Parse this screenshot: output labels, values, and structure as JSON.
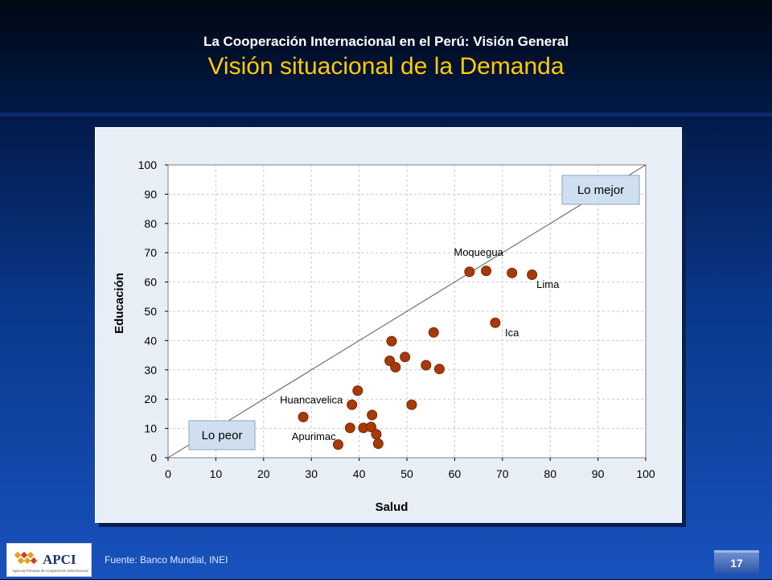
{
  "header": {
    "subtitle": "La Cooperación Internacional en el Perú: Visión General",
    "title": "Visión situacional de la Demanda"
  },
  "footer": {
    "source": "Fuente: Banco Mundial, INEI",
    "page_number": "17",
    "logo_name": "APCI",
    "logo_tagline": "Agencia Peruana de Cooperación Internacional"
  },
  "colors": {
    "title": "#ffcc00",
    "point": "#a63a0a",
    "point_stroke": "#7a2604",
    "label_box": "#cfdff0"
  },
  "chart_data": {
    "type": "scatter",
    "xlabel": "Salud",
    "ylabel": "Educación",
    "xlim": [
      0,
      100
    ],
    "ylim": [
      0,
      100
    ],
    "xticks": [
      0,
      10,
      20,
      30,
      40,
      50,
      60,
      70,
      80,
      90,
      100
    ],
    "yticks": [
      0,
      10,
      20,
      30,
      40,
      50,
      60,
      70,
      80,
      90,
      100
    ],
    "grid": true,
    "reference_line": {
      "from": [
        0,
        0
      ],
      "to": [
        100,
        100
      ]
    },
    "region_labels": {
      "best": "Lo mejor",
      "worst": "Lo peor"
    },
    "points": [
      {
        "x": 28.3,
        "y": 13.9
      },
      {
        "x": 35.6,
        "y": 4.5
      },
      {
        "x": 38.1,
        "y": 10.2
      },
      {
        "x": 38.5,
        "y": 18.1
      },
      {
        "x": 39.7,
        "y": 22.9
      },
      {
        "x": 40.9,
        "y": 10.2
      },
      {
        "x": 42.5,
        "y": 10.5
      },
      {
        "x": 42.7,
        "y": 14.6
      },
      {
        "x": 43.6,
        "y": 8.0
      },
      {
        "x": 44.0,
        "y": 4.8
      },
      {
        "x": 46.4,
        "y": 33.1
      },
      {
        "x": 46.8,
        "y": 39.8
      },
      {
        "x": 47.6,
        "y": 30.9
      },
      {
        "x": 49.6,
        "y": 34.4
      },
      {
        "x": 51.0,
        "y": 18.1
      },
      {
        "x": 54.0,
        "y": 31.6
      },
      {
        "x": 55.6,
        "y": 42.8
      },
      {
        "x": 56.8,
        "y": 30.3
      },
      {
        "x": 63.1,
        "y": 63.5
      },
      {
        "x": 66.6,
        "y": 63.8
      },
      {
        "x": 68.5,
        "y": 46.1
      },
      {
        "x": 72.0,
        "y": 63.1
      },
      {
        "x": 76.2,
        "y": 62.5
      }
    ],
    "annotations": [
      {
        "text": "Moquegua",
        "x": 65.0,
        "y": 69.0
      },
      {
        "text": "Lima",
        "x": 79.5,
        "y": 58.0
      },
      {
        "text": "Ica",
        "x": 72.0,
        "y": 41.5
      },
      {
        "text": "Huancavelica",
        "x": 30.0,
        "y": 18.5
      },
      {
        "text": "Apurimac",
        "x": 30.5,
        "y": 6.0
      }
    ]
  }
}
